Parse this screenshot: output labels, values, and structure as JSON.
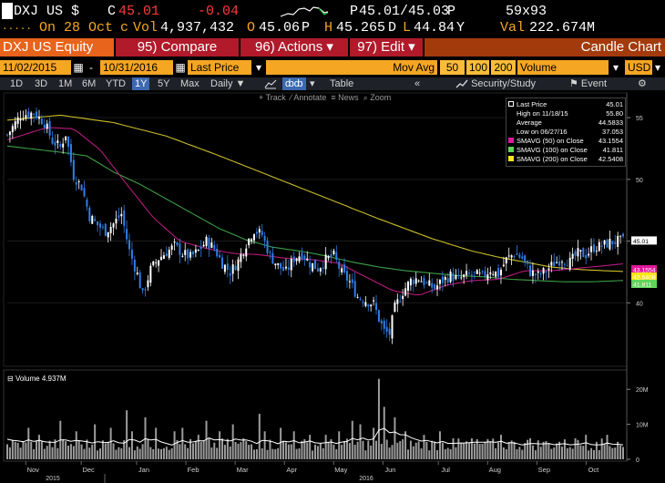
{
  "quote": {
    "ticker": "DXJ US",
    "currency": "$",
    "close_label": "C",
    "close_value": "45.01",
    "change": "-0.04",
    "bid_ask_prefix": "P",
    "bid_ask": "45.01/45.03",
    "bid_ask_suffix": "P",
    "size": "59x93",
    "date_prefix": "On",
    "date": "28 Oct",
    "date_suffix": "c",
    "volume_label": "Vol",
    "volume": "4,937,432",
    "open_label": "O",
    "open": "45.06",
    "open_suffix": "P",
    "high_label": "H",
    "high": "45.265",
    "high_suffix": "D",
    "low_label": "L",
    "low": "44.84",
    "low_suffix": "Y",
    "value_label": "Val",
    "value": "222.674M"
  },
  "function_bar": {
    "security": "DXJ US Equity",
    "compare": "95) Compare",
    "actions": "96) Actions",
    "edit": "97) Edit",
    "chart_title": "Candle Chart",
    "menu_arrow": "▾"
  },
  "settings": {
    "start_date": "11/02/2015",
    "dash": "-",
    "end_date": "10/31/2016",
    "field": "Last Price",
    "study": "Mov Avg",
    "ma_periods": [
      "50",
      "100",
      "200"
    ],
    "lower_study": "Volume",
    "currency": "USD"
  },
  "ranges": {
    "items": [
      "1D",
      "3D",
      "1M",
      "6M",
      "YTD",
      "1Y",
      "5Y",
      "Max"
    ],
    "selected": "1Y",
    "frequency": "Daily",
    "table": "Table",
    "security_study": "Security/Study",
    "event": "Event"
  },
  "chart_controls": {
    "track": "Track",
    "annotate": "Annotate",
    "news": "News",
    "zoom": "Zoom"
  },
  "legend": {
    "rows": [
      {
        "label": "Last Price",
        "value": "45.01",
        "color": "#ffffff"
      },
      {
        "label": "High on 11/18/15",
        "value": "55.80",
        "color": "#ffffff"
      },
      {
        "label": "Average",
        "value": "44.5833",
        "color": "#ffffff"
      },
      {
        "label": "Low on 06/27/16",
        "value": "37.053",
        "color": "#ffffff"
      },
      {
        "label": "SMAVG (50) on Close",
        "value": "43.1554",
        "color": "#e0189a"
      },
      {
        "label": "SMAVG (100) on Close",
        "value": "41.811",
        "color": "#5fd65a"
      },
      {
        "label": "SMAVG (200) on Close",
        "value": "42.5408",
        "color": "#f5e616"
      }
    ]
  },
  "volume_panel": {
    "label": "Volume",
    "value": "4.937M"
  },
  "chart_data": [
    {
      "type": "candlestick",
      "ylim": [
        35,
        57
      ],
      "y_ticks": [
        40,
        45,
        50,
        55
      ],
      "x_ticks": [
        "Nov",
        "Dec",
        "Jan",
        "Feb",
        "Mar",
        "Apr",
        "May",
        "Jun",
        "Jul",
        "Aug",
        "Sep",
        "Oct"
      ],
      "year_labels": [
        "2015",
        "2016"
      ],
      "price_tags": [
        {
          "value": "45.01",
          "color": "#ffffff"
        },
        {
          "value": "43.1554",
          "color": "#e0189a"
        },
        {
          "value": "42.5408",
          "color": "#f5e616"
        },
        {
          "value": "41.811",
          "color": "#5fd65a"
        }
      ],
      "close_path": [
        [
          0,
          53.6
        ],
        [
          5,
          55.2
        ],
        [
          10,
          55.4
        ],
        [
          14,
          54.6
        ],
        [
          17,
          53.1
        ],
        [
          20,
          52.6
        ],
        [
          22,
          53.7
        ],
        [
          25,
          50.3
        ],
        [
          28,
          49.4
        ],
        [
          31,
          47.0
        ],
        [
          34,
          46.3
        ],
        [
          37,
          45.8
        ],
        [
          40,
          46.4
        ],
        [
          43,
          47.2
        ],
        [
          46,
          44.2
        ],
        [
          49,
          42.3
        ],
        [
          51,
          40.6
        ],
        [
          54,
          42.7
        ],
        [
          57,
          43.6
        ],
        [
          60,
          44.1
        ],
        [
          63,
          44.6
        ],
        [
          66,
          44.0
        ],
        [
          69,
          43.7
        ],
        [
          72,
          44.2
        ],
        [
          75,
          45.0
        ],
        [
          78,
          44.4
        ],
        [
          81,
          43.2
        ],
        [
          84,
          42.5
        ],
        [
          87,
          43.4
        ],
        [
          90,
          44.8
        ],
        [
          93,
          45.9
        ],
        [
          96,
          45.5
        ],
        [
          99,
          43.8
        ],
        [
          102,
          43.0
        ],
        [
          105,
          42.5
        ],
        [
          108,
          43.6
        ],
        [
          111,
          44.0
        ],
        [
          114,
          43.2
        ],
        [
          117,
          42.8
        ],
        [
          120,
          43.5
        ],
        [
          123,
          43.8
        ],
        [
          126,
          42.4
        ],
        [
          129,
          41.7
        ],
        [
          132,
          40.5
        ],
        [
          135,
          40.2
        ],
        [
          138,
          39.9
        ],
        [
          140,
          38.7
        ],
        [
          142,
          37.7
        ],
        [
          144,
          37.5
        ],
        [
          146,
          39.6
        ],
        [
          149,
          40.9
        ],
        [
          152,
          41.8
        ],
        [
          155,
          42.0
        ],
        [
          158,
          41.5
        ],
        [
          161,
          41.2
        ],
        [
          164,
          41.8
        ],
        [
          167,
          42.2
        ],
        [
          170,
          41.9
        ],
        [
          173,
          42.2
        ],
        [
          176,
          42.3
        ],
        [
          179,
          42.1
        ],
        [
          182,
          42.7
        ],
        [
          185,
          42.3
        ],
        [
          188,
          43.5
        ],
        [
          191,
          44.0
        ],
        [
          194,
          43.6
        ],
        [
          197,
          42.5
        ],
        [
          200,
          42.2
        ],
        [
          203,
          42.6
        ],
        [
          206,
          43.2
        ],
        [
          209,
          43.6
        ],
        [
          212,
          43.3
        ],
        [
          215,
          44.0
        ],
        [
          218,
          43.9
        ],
        [
          221,
          44.5
        ],
        [
          224,
          44.6
        ],
        [
          227,
          44.9
        ],
        [
          230,
          45.0
        ],
        [
          232,
          45.01
        ]
      ],
      "sma50_path": [
        [
          0,
          53.2
        ],
        [
          15,
          54.2
        ],
        [
          25,
          54.1
        ],
        [
          35,
          52.4
        ],
        [
          45,
          49.6
        ],
        [
          55,
          46.9
        ],
        [
          65,
          45.0
        ],
        [
          75,
          44.4
        ],
        [
          85,
          44.0
        ],
        [
          95,
          43.9
        ],
        [
          105,
          43.6
        ],
        [
          115,
          43.5
        ],
        [
          125,
          43.2
        ],
        [
          135,
          42.1
        ],
        [
          145,
          41.0
        ],
        [
          155,
          40.6
        ],
        [
          165,
          41.4
        ],
        [
          175,
          41.8
        ],
        [
          185,
          41.9
        ],
        [
          195,
          42.6
        ],
        [
          205,
          42.6
        ],
        [
          215,
          42.8
        ],
        [
          225,
          43.0
        ],
        [
          232,
          43.16
        ]
      ],
      "sma100_path": [
        [
          0,
          52.7
        ],
        [
          20,
          52.2
        ],
        [
          30,
          51.9
        ],
        [
          40,
          50.6
        ],
        [
          50,
          49.6
        ],
        [
          60,
          48.4
        ],
        [
          70,
          47.2
        ],
        [
          80,
          46.0
        ],
        [
          90,
          45.1
        ],
        [
          100,
          44.5
        ],
        [
          110,
          44.2
        ],
        [
          120,
          43.8
        ],
        [
          130,
          43.3
        ],
        [
          140,
          42.9
        ],
        [
          150,
          42.6
        ],
        [
          160,
          42.4
        ],
        [
          170,
          42.2
        ],
        [
          180,
          42.1
        ],
        [
          190,
          41.9
        ],
        [
          200,
          41.8
        ],
        [
          210,
          41.7
        ],
        [
          220,
          41.7
        ],
        [
          232,
          41.81
        ]
      ],
      "sma200_path": [
        [
          0,
          54.8
        ],
        [
          20,
          55.2
        ],
        [
          40,
          54.6
        ],
        [
          60,
          53.5
        ],
        [
          80,
          51.9
        ],
        [
          100,
          50.2
        ],
        [
          120,
          48.5
        ],
        [
          140,
          46.8
        ],
        [
          160,
          45.2
        ],
        [
          175,
          44.2
        ],
        [
          185,
          43.7
        ],
        [
          195,
          43.3
        ],
        [
          205,
          42.9
        ],
        [
          215,
          42.7
        ],
        [
          225,
          42.6
        ],
        [
          232,
          42.54
        ]
      ]
    },
    {
      "type": "bar",
      "ylim": [
        0,
        25
      ],
      "y_ticks": [
        "20M",
        "10M",
        "0"
      ],
      "volume_spikes": [
        [
          8,
          9
        ],
        [
          12,
          7
        ],
        [
          20,
          11
        ],
        [
          26,
          8
        ],
        [
          33,
          10
        ],
        [
          39,
          9
        ],
        [
          45,
          14
        ],
        [
          47,
          8
        ],
        [
          52,
          12
        ],
        [
          56,
          9
        ],
        [
          63,
          8
        ],
        [
          66,
          9
        ],
        [
          72,
          7
        ],
        [
          75,
          11
        ],
        [
          80,
          8
        ],
        [
          85,
          10
        ],
        [
          89,
          6
        ],
        [
          95,
          13
        ],
        [
          97,
          8
        ],
        [
          103,
          9
        ],
        [
          108,
          8
        ],
        [
          114,
          7
        ],
        [
          120,
          7
        ],
        [
          125,
          8
        ],
        [
          130,
          11
        ],
        [
          133,
          10
        ],
        [
          138,
          9
        ],
        [
          140,
          23
        ],
        [
          142,
          15
        ],
        [
          146,
          12
        ],
        [
          150,
          8
        ],
        [
          157,
          7
        ],
        [
          163,
          8
        ],
        [
          168,
          6
        ],
        [
          175,
          6
        ],
        [
          180,
          5
        ],
        [
          186,
          7
        ],
        [
          191,
          5
        ],
        [
          197,
          6
        ],
        [
          202,
          5
        ],
        [
          208,
          5
        ],
        [
          214,
          6
        ],
        [
          218,
          7
        ],
        [
          222,
          5
        ],
        [
          226,
          7
        ],
        [
          230,
          5
        ]
      ]
    }
  ]
}
